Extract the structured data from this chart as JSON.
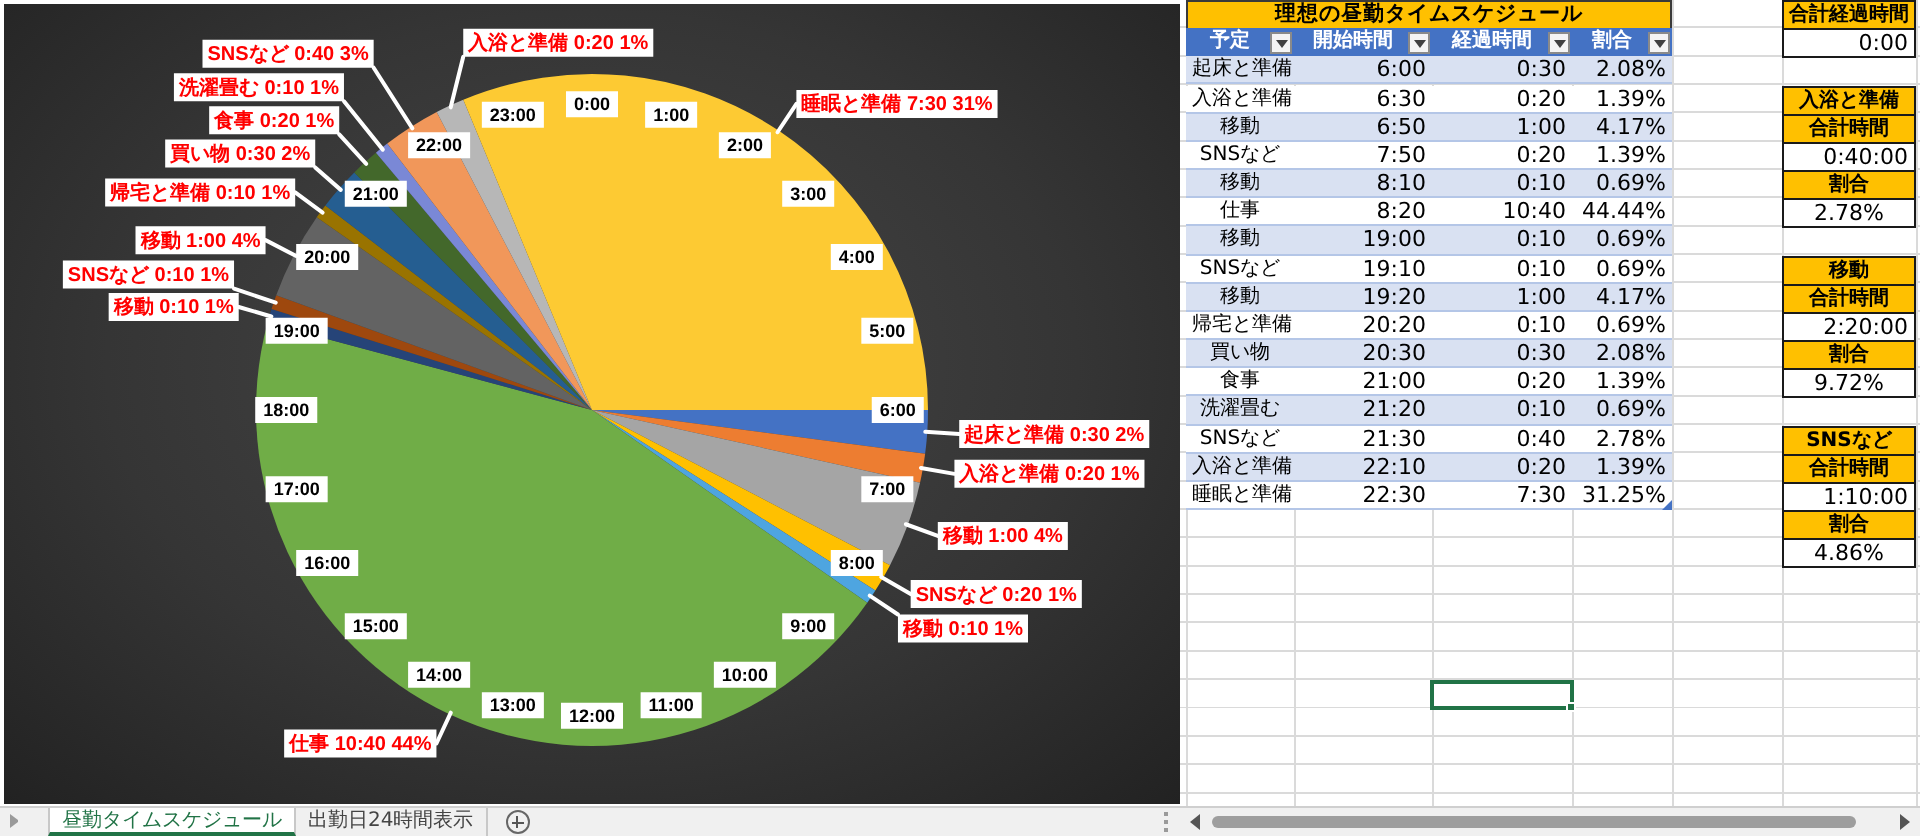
{
  "chart_data": [
    {
      "type": "pie",
      "categories": [
        "起床と準備",
        "入浴と準備",
        "移動",
        "SNSなど",
        "移動",
        "仕事",
        "移動",
        "SNSなど",
        "移動",
        "帰宅と準備",
        "買い物",
        "食事",
        "洗濯畳む",
        "SNSなど",
        "入浴と準備",
        "睡眠と準備"
      ],
      "values": [
        2.08,
        1.39,
        4.17,
        1.39,
        0.69,
        44.44,
        0.69,
        0.69,
        4.17,
        0.69,
        2.08,
        1.39,
        0.69,
        2.78,
        1.39,
        31.25
      ],
      "value_labels": [
        "0:30 2%",
        "0:20 1%",
        "1:00 4%",
        "0:20 1%",
        "0:10 1%",
        "10:40 44%",
        "0:10 1%",
        "0:10 1%",
        "1:00 4%",
        "0:10 1%",
        "0:30 2%",
        "0:20 1%",
        "0:10 1%",
        "0:40 3%",
        "0:20 1%",
        "7:30 31%"
      ],
      "colors": [
        "#4472c4",
        "#ed7d31",
        "#a5a5a5",
        "#ffc000",
        "#4ea5e0",
        "#70ad47",
        "#264478",
        "#9e480e",
        "#636363",
        "#997300",
        "#255e91",
        "#43682b",
        "#7a88d6",
        "#f1975a",
        "#b7b7b7",
        "#fdca33"
      ],
      "annotations": [
        "0:00",
        "1:00",
        "2:00",
        "3:00",
        "4:00",
        "5:00",
        "6:00",
        "7:00",
        "8:00",
        "9:00",
        "10:00",
        "11:00",
        "12:00",
        "13:00",
        "14:00",
        "15:00",
        "16:00",
        "17:00",
        "18:00",
        "19:00",
        "20:00",
        "21:00",
        "22:00",
        "23:00"
      ]
    },
    {
      "type": "other",
      "title": "理想の昼勤タイムスケジュール",
      "annotations": [
        "予定",
        "開始時間",
        "経過時間",
        "割合",
        "起床と準備",
        "6:00",
        "0:30",
        "2.08%",
        "入浴と準備",
        "6:30",
        "0:20",
        "1.39%",
        "移動",
        "6:50",
        "1:00",
        "4.17%",
        "SNSなど",
        "7:50",
        "0:20",
        "1.39%",
        "移動",
        "8:10",
        "0:10",
        "0.69%",
        "仕事",
        "8:20",
        "10:40",
        "44.44%",
        "移動",
        "19:00",
        "0:10",
        "0.69%",
        "SNSなど",
        "19:10",
        "0:10",
        "0.69%",
        "移動",
        "19:20",
        "1:00",
        "4.17%",
        "帰宅と準備",
        "20:20",
        "0:10",
        "0.69%",
        "買い物",
        "20:30",
        "0:30",
        "2.08%",
        "食事",
        "21:00",
        "0:20",
        "1.39%",
        "洗濯畳む",
        "21:20",
        "0:10",
        "0.69%",
        "SNSなど",
        "21:30",
        "0:40",
        "2.78%",
        "入浴と準備",
        "22:10",
        "0:20",
        "1.39%",
        "睡眠と準備",
        "22:30",
        "7:30",
        "31.25%"
      ]
    },
    {
      "type": "other",
      "annotations": [
        "合計経過時間",
        "0:00",
        "入浴と準備",
        "合計時間",
        "0:40:00",
        "割合",
        "2.78%",
        "移動",
        "合計時間",
        "2:20:00",
        "割合",
        "9.72%",
        "SNSなど",
        "合計時間",
        "1:10:00",
        "割合",
        "4.86%"
      ]
    },
    {
      "type": "other",
      "annotations": [
        "昼勤タイムスケジュール",
        "出勤日24時間表示"
      ]
    }
  ]
}
